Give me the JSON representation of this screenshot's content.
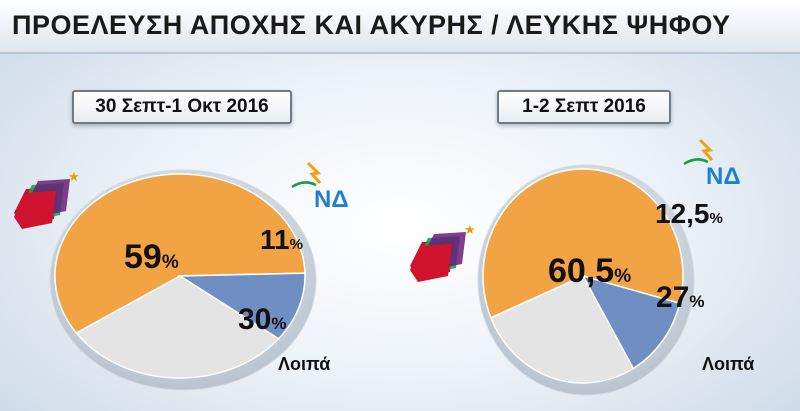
{
  "title": "ΠΡΟΕΛΕΥΣΗ ΑΠΟΧΗΣ ΚΑΙ ΑΚΥΡΗΣ / ΛΕΥΚΗΣ ΨΗΦΟΥ",
  "party_labels": {
    "nd": "ΝΔ",
    "other": "Λοιπά"
  },
  "colors": {
    "syriza": "#F2A444",
    "nd": "#6F8FC2",
    "other": "#E4E4E4"
  },
  "chart_data": [
    {
      "type": "pie",
      "title": "30 Σεπτ-1 Οκτ 2016",
      "slices": [
        {
          "name": "ΣΥΡΙΖΑ",
          "value": 59,
          "label": "59",
          "color": "#F2A444"
        },
        {
          "name": "ΝΔ",
          "value": 11,
          "label": "11",
          "color": "#6F8FC2"
        },
        {
          "name": "Λοιπά",
          "value": 30,
          "label": "30",
          "color": "#E4E4E4"
        }
      ],
      "unit": "%"
    },
    {
      "type": "pie",
      "title": "1-2 Σεπτ 2016",
      "slices": [
        {
          "name": "ΣΥΡΙΖΑ",
          "value": 60.5,
          "label": "60,5",
          "color": "#F2A444"
        },
        {
          "name": "ΝΔ",
          "value": 12.5,
          "label": "12,5",
          "color": "#6F8FC2"
        },
        {
          "name": "Λοιπά",
          "value": 27,
          "label": "27",
          "color": "#E4E4E4"
        }
      ],
      "unit": "%"
    }
  ]
}
